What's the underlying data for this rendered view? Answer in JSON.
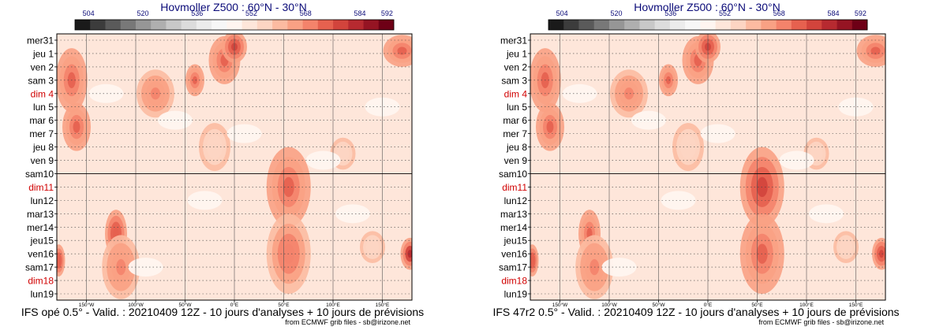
{
  "chart_data": [
    {
      "type": "heatmap",
      "title": "Hovmoller Z500 : 60°N - 30°N",
      "subtitle": "IFS opé 0.5° - Valid. : 20210409 12Z - 10 jours d'analyses + 10 jours de prévisions",
      "credit": "from ECMWF grib files - sb@irizone.net",
      "colorbar": {
        "ticks": [
          "504",
          "520",
          "536",
          "552",
          "568",
          "584",
          "592"
        ],
        "tick_values": [
          504,
          520,
          536,
          552,
          568,
          584,
          592
        ],
        "range": [
          500,
          594
        ],
        "colors": [
          "#1a1a1a",
          "#3c3c3c",
          "#5a5a5a",
          "#787878",
          "#969696",
          "#afafaf",
          "#c8c8c8",
          "#dcdcdc",
          "#ececec",
          "#f7f7f7",
          "#fff5f0",
          "#fee6da",
          "#fdd5c3",
          "#fcbba1",
          "#f9a184",
          "#f4836b",
          "#e6614f",
          "#d2443c",
          "#b72a30",
          "#951423",
          "#6e0016"
        ]
      },
      "x_ticks": [
        "150°W",
        "100°W",
        "50°W",
        "0°E",
        "50°E",
        "100°E",
        "150°E"
      ],
      "x_tick_values": [
        -150,
        -100,
        -50,
        0,
        50,
        100,
        150
      ],
      "xlim": [
        -180,
        180
      ],
      "y_labels": [
        {
          "label": "mer31",
          "weekend": false
        },
        {
          "label": "jeu 1",
          "weekend": false
        },
        {
          "label": "ven 2",
          "weekend": false
        },
        {
          "label": "sam 3",
          "weekend": false
        },
        {
          "label": "dim 4",
          "weekend": true
        },
        {
          "label": "lun 5",
          "weekend": false
        },
        {
          "label": "mar 6",
          "weekend": false
        },
        {
          "label": "mer 7",
          "weekend": false
        },
        {
          "label": "jeu 8",
          "weekend": false
        },
        {
          "label": "ven 9",
          "weekend": false
        },
        {
          "label": "sam10",
          "weekend": false
        },
        {
          "label": "dim11",
          "weekend": true
        },
        {
          "label": "lun12",
          "weekend": false
        },
        {
          "label": "mar13",
          "weekend": false
        },
        {
          "label": "mer14",
          "weekend": false
        },
        {
          "label": "jeu15",
          "weekend": false
        },
        {
          "label": "ven16",
          "weekend": false
        },
        {
          "label": "sam17",
          "weekend": false
        },
        {
          "label": "dim18",
          "weekend": true
        },
        {
          "label": "lun19",
          "weekend": false
        }
      ],
      "analysis_forecast_split": "sam10",
      "blobs": [
        {
          "lon": -165,
          "day": 3,
          "value": 572,
          "w": 10,
          "h": 4
        },
        {
          "lon": -160,
          "day": 6.5,
          "value": 574,
          "w": 9,
          "h": 3
        },
        {
          "lon": -120,
          "day": 14.5,
          "value": 576,
          "w": 7,
          "h": 3
        },
        {
          "lon": -115,
          "day": 17,
          "value": 568,
          "w": 12,
          "h": 4
        },
        {
          "lon": -40,
          "day": 3,
          "value": 574,
          "w": 6,
          "h": 2
        },
        {
          "lon": -10,
          "day": 1.5,
          "value": 574,
          "w": 10,
          "h": 3
        },
        {
          "lon": 0,
          "day": 0.5,
          "value": 578,
          "w": 8,
          "h": 2
        },
        {
          "lon": 55,
          "day": 11,
          "value": 574,
          "w": 14,
          "h": 5
        },
        {
          "lon": 55,
          "day": 16,
          "value": 570,
          "w": 14,
          "h": 5
        },
        {
          "lon": 170,
          "day": 0.8,
          "value": 574,
          "w": 12,
          "h": 2
        },
        {
          "lon": 178,
          "day": 16,
          "value": 582,
          "w": 6,
          "h": 2
        },
        {
          "lon": -178,
          "day": 16.5,
          "value": 576,
          "w": 4,
          "h": 2
        },
        {
          "lon": -80,
          "day": 4,
          "value": 568,
          "w": 12,
          "h": 3
        },
        {
          "lon": -20,
          "day": 8,
          "value": 556,
          "w": 10,
          "h": 3
        },
        {
          "lon": 110,
          "day": 8.5,
          "value": 554,
          "w": 8,
          "h": 2
        },
        {
          "lon": 140,
          "day": 15.5,
          "value": 556,
          "w": 8,
          "h": 2
        }
      ]
    },
    {
      "type": "heatmap",
      "title": "Hovmoller Z500 : 60°N - 30°N",
      "subtitle": "IFS 47r2 0.5° - Valid. : 20210409 12Z - 10 jours d'analyses + 10 jours de prévisions",
      "credit": "from ECMWF grib files - sb@irizone.net",
      "colorbar": {
        "ticks": [
          "504",
          "520",
          "536",
          "552",
          "568",
          "584",
          "592"
        ],
        "tick_values": [
          504,
          520,
          536,
          552,
          568,
          584,
          592
        ],
        "range": [
          500,
          594
        ],
        "colors": [
          "#1a1a1a",
          "#3c3c3c",
          "#5a5a5a",
          "#787878",
          "#969696",
          "#afafaf",
          "#c8c8c8",
          "#dcdcdc",
          "#ececec",
          "#f7f7f7",
          "#fff5f0",
          "#fee6da",
          "#fdd5c3",
          "#fcbba1",
          "#f9a184",
          "#f4836b",
          "#e6614f",
          "#d2443c",
          "#b72a30",
          "#951423",
          "#6e0016"
        ]
      },
      "x_ticks": [
        "150°W",
        "100°W",
        "50°W",
        "0°E",
        "50°E",
        "100°E",
        "150°E"
      ],
      "x_tick_values": [
        -150,
        -100,
        -50,
        0,
        50,
        100,
        150
      ],
      "xlim": [
        -180,
        180
      ],
      "y_labels": [
        {
          "label": "mer31",
          "weekend": false
        },
        {
          "label": "jeu 1",
          "weekend": false
        },
        {
          "label": "ven 2",
          "weekend": false
        },
        {
          "label": "sam 3",
          "weekend": false
        },
        {
          "label": "dim 4",
          "weekend": true
        },
        {
          "label": "lun 5",
          "weekend": false
        },
        {
          "label": "mar 6",
          "weekend": false
        },
        {
          "label": "mer 7",
          "weekend": false
        },
        {
          "label": "jeu 8",
          "weekend": false
        },
        {
          "label": "ven 9",
          "weekend": false
        },
        {
          "label": "sam10",
          "weekend": false
        },
        {
          "label": "dim11",
          "weekend": true
        },
        {
          "label": "lun12",
          "weekend": false
        },
        {
          "label": "mar13",
          "weekend": false
        },
        {
          "label": "mer14",
          "weekend": false
        },
        {
          "label": "jeu15",
          "weekend": false
        },
        {
          "label": "ven16",
          "weekend": false
        },
        {
          "label": "sam17",
          "weekend": false
        },
        {
          "label": "dim18",
          "weekend": true
        },
        {
          "label": "lun19",
          "weekend": false
        }
      ],
      "analysis_forecast_split": "sam10",
      "blobs": [
        {
          "lon": -165,
          "day": 3,
          "value": 572,
          "w": 10,
          "h": 4
        },
        {
          "lon": -160,
          "day": 6.5,
          "value": 574,
          "w": 9,
          "h": 3
        },
        {
          "lon": -120,
          "day": 14.5,
          "value": 574,
          "w": 7,
          "h": 3
        },
        {
          "lon": -115,
          "day": 17,
          "value": 568,
          "w": 12,
          "h": 4
        },
        {
          "lon": -40,
          "day": 3,
          "value": 574,
          "w": 6,
          "h": 2
        },
        {
          "lon": -10,
          "day": 1.5,
          "value": 574,
          "w": 10,
          "h": 3
        },
        {
          "lon": 0,
          "day": 0.5,
          "value": 578,
          "w": 8,
          "h": 2
        },
        {
          "lon": 55,
          "day": 11,
          "value": 578,
          "w": 14,
          "h": 5
        },
        {
          "lon": 55,
          "day": 16,
          "value": 572,
          "w": 14,
          "h": 5
        },
        {
          "lon": 170,
          "day": 0.8,
          "value": 574,
          "w": 12,
          "h": 2
        },
        {
          "lon": 176,
          "day": 16,
          "value": 580,
          "w": 6,
          "h": 2
        },
        {
          "lon": -178,
          "day": 16.5,
          "value": 576,
          "w": 4,
          "h": 2
        },
        {
          "lon": -80,
          "day": 4,
          "value": 568,
          "w": 12,
          "h": 3
        },
        {
          "lon": -20,
          "day": 8,
          "value": 556,
          "w": 10,
          "h": 3
        },
        {
          "lon": 110,
          "day": 8.5,
          "value": 554,
          "w": 8,
          "h": 2
        },
        {
          "lon": 140,
          "day": 15.5,
          "value": 554,
          "w": 8,
          "h": 2
        }
      ]
    }
  ]
}
